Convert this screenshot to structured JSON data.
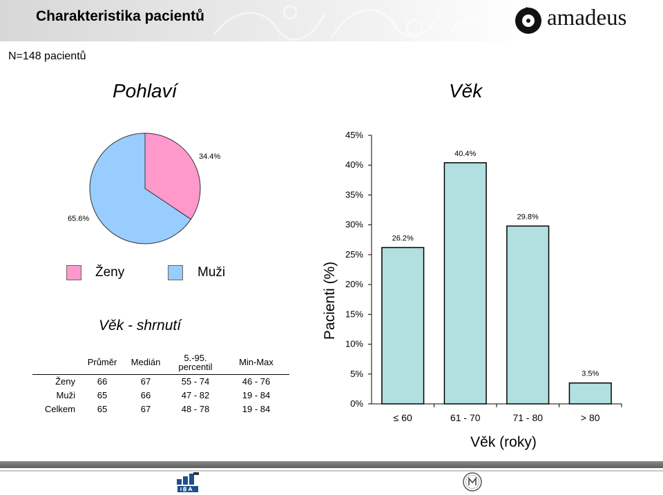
{
  "header": {
    "title": "Charakteristika pacientů",
    "logo_text": "amadeus"
  },
  "n_label": "N=148 pacientů",
  "sections": {
    "sex_title": "Pohlaví",
    "age_title": "Věk",
    "summary_title": "Věk - shrnutí"
  },
  "legend": {
    "zeny": "Ženy",
    "muzi": "Muži"
  },
  "colors": {
    "zeny": "#FF99CC",
    "muzi": "#99CCFF",
    "bar": "#B2DFE0"
  },
  "summary_table": {
    "headers": [
      "Průměr",
      "Medián",
      "5.-95. percentil",
      "Min-Max"
    ],
    "rows": [
      {
        "label": "Ženy",
        "values": [
          "66",
          "67",
          "55 - 74",
          "46 - 76"
        ]
      },
      {
        "label": "Muži",
        "values": [
          "65",
          "66",
          "47 - 82",
          "19 - 84"
        ]
      },
      {
        "label": "Celkem",
        "values": [
          "65",
          "67",
          "48 - 78",
          "19 - 84"
        ]
      }
    ]
  },
  "chart_data": [
    {
      "type": "pie",
      "slices": [
        {
          "name": "Ženy",
          "value": 34.4,
          "label": "34.4%"
        },
        {
          "name": "Muži",
          "value": 65.6,
          "label": "65.6%"
        }
      ]
    },
    {
      "type": "bar",
      "categories": [
        "≤ 60",
        "61 - 70",
        "71 - 80",
        "> 80"
      ],
      "values": [
        26.2,
        40.4,
        29.8,
        3.5
      ],
      "value_labels": [
        "26.2%",
        "40.4%",
        "29.8%",
        "3.5%"
      ],
      "xlabel": "Věk (roky)",
      "ylabel": "Pacienti (%)",
      "ylim": [
        0,
        45
      ],
      "yticks": [
        "0%",
        "5%",
        "10%",
        "15%",
        "20%",
        "25%",
        "30%",
        "35%",
        "40%",
        "45%"
      ],
      "grid": false
    }
  ]
}
